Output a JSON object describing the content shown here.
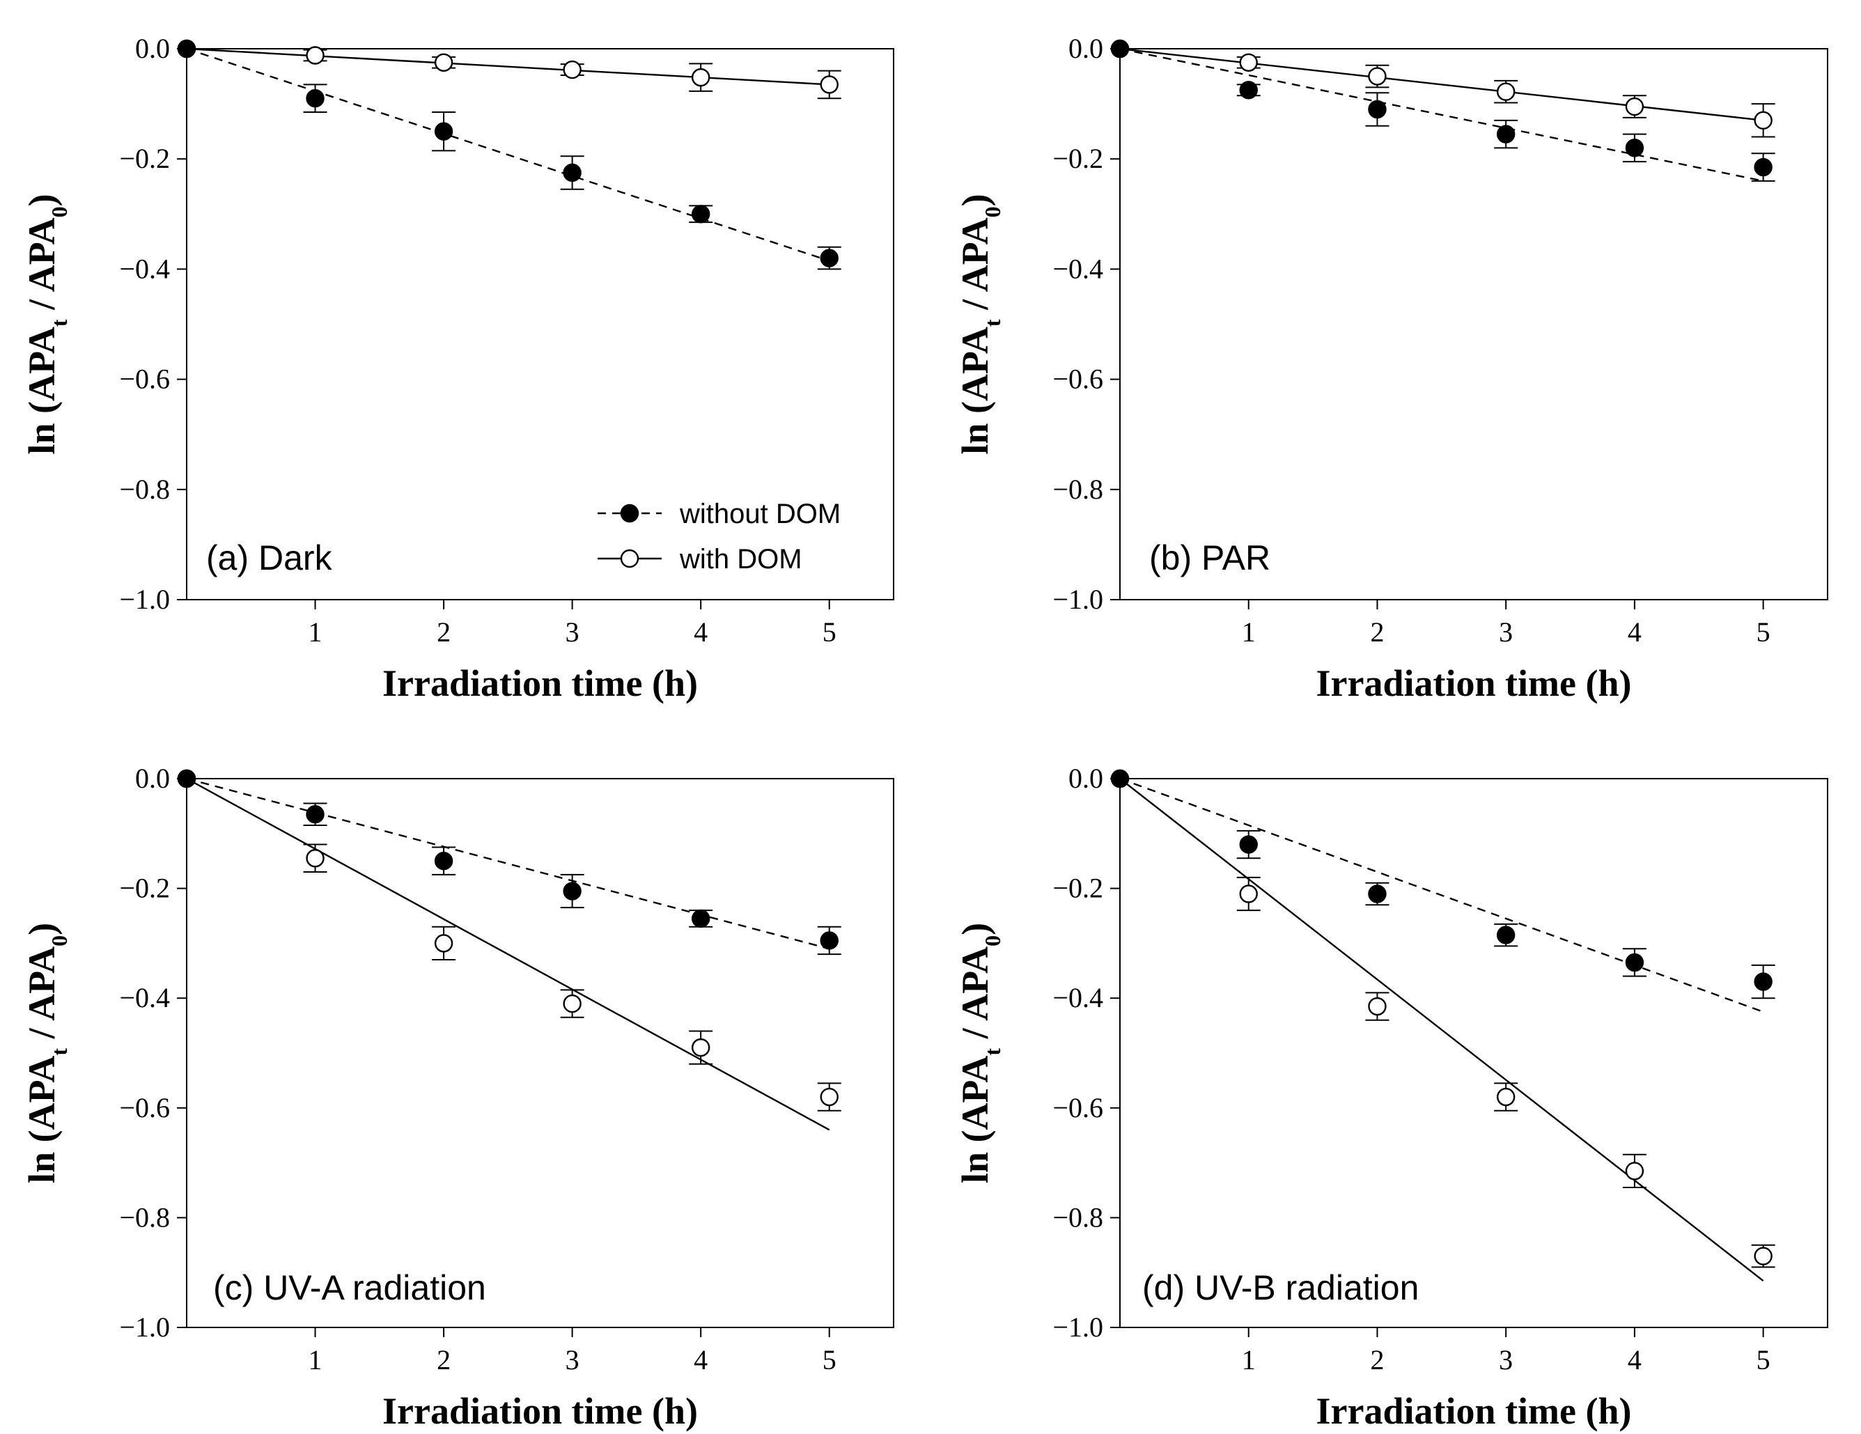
{
  "chart_data": [
    {
      "type": "scatter",
      "panel_label": "(a) Dark",
      "xlabel": "Irradiation time (h)",
      "ylabel": "ln (APA_t / APA_0)",
      "xlim": [
        0,
        5.5
      ],
      "ylim": [
        -1.0,
        0.0
      ],
      "xticks": [
        "1",
        "2",
        "3",
        "4",
        "5"
      ],
      "yticks": [
        "0.0",
        "−0.2",
        "−0.4",
        "−0.6",
        "−0.8",
        "−1.0"
      ],
      "series": [
        {
          "name": "without DOM",
          "marker": "filled",
          "line": "dashed",
          "x": [
            0,
            1,
            2,
            3,
            4,
            5
          ],
          "y": [
            0,
            -0.09,
            -0.15,
            -0.225,
            -0.3,
            -0.38
          ],
          "err": [
            0,
            0.025,
            0.035,
            0.03,
            0.015,
            0.02
          ],
          "fit": [
            0,
            -0.077
          ]
        },
        {
          "name": "with DOM",
          "marker": "open",
          "line": "solid",
          "x": [
            0,
            1,
            2,
            3,
            4,
            5
          ],
          "y": [
            0,
            -0.012,
            -0.025,
            -0.038,
            -0.052,
            -0.065
          ],
          "err": [
            0,
            0.01,
            0.01,
            0.01,
            0.025,
            0.025
          ],
          "fit": [
            0,
            -0.013
          ]
        }
      ],
      "legend": {
        "placement": "bottom-right",
        "entries": [
          "without DOM",
          "with DOM"
        ]
      }
    },
    {
      "type": "scatter",
      "panel_label": "(b) PAR",
      "xlabel": "Irradiation time (h)",
      "ylabel": "ln (APA_t / APA_0)",
      "xlim": [
        0,
        5.5
      ],
      "ylim": [
        -1.0,
        0.0
      ],
      "xticks": [
        "1",
        "2",
        "3",
        "4",
        "5"
      ],
      "yticks": [
        "0.0",
        "−0.2",
        "−0.4",
        "−0.6",
        "−0.8",
        "−1.0"
      ],
      "series": [
        {
          "name": "without DOM",
          "marker": "filled",
          "line": "dashed",
          "x": [
            0,
            1,
            2,
            3,
            4,
            5
          ],
          "y": [
            0,
            -0.075,
            -0.11,
            -0.155,
            -0.18,
            -0.215
          ],
          "err": [
            0,
            0.01,
            0.03,
            0.025,
            0.025,
            0.025
          ],
          "fit": [
            0,
            -0.048
          ]
        },
        {
          "name": "with DOM",
          "marker": "open",
          "line": "solid",
          "x": [
            0,
            1,
            2,
            3,
            4,
            5
          ],
          "y": [
            0,
            -0.025,
            -0.05,
            -0.078,
            -0.105,
            -0.13
          ],
          "err": [
            0,
            0.01,
            0.02,
            0.02,
            0.02,
            0.03
          ],
          "fit": [
            0,
            -0.026
          ]
        }
      ]
    },
    {
      "type": "scatter",
      "panel_label": "(c) UV-A radiation",
      "xlabel": "Irradiation time (h)",
      "ylabel": "ln (APA_t / APA_0)",
      "xlim": [
        0,
        5.5
      ],
      "ylim": [
        -1.0,
        0.0
      ],
      "xticks": [
        "1",
        "2",
        "3",
        "4",
        "5"
      ],
      "yticks": [
        "0.0",
        "−0.2",
        "−0.4",
        "−0.6",
        "−0.8",
        "−1.0"
      ],
      "series": [
        {
          "name": "without DOM",
          "marker": "filled",
          "line": "dashed",
          "x": [
            0,
            1,
            2,
            3,
            4,
            5
          ],
          "y": [
            0,
            -0.065,
            -0.15,
            -0.205,
            -0.255,
            -0.295
          ],
          "err": [
            0,
            0.02,
            0.025,
            0.03,
            0.015,
            0.025
          ],
          "fit": [
            0,
            -0.062
          ]
        },
        {
          "name": "with DOM",
          "marker": "open",
          "line": "solid",
          "x": [
            0,
            1,
            2,
            3,
            4,
            5
          ],
          "y": [
            0,
            -0.145,
            -0.3,
            -0.41,
            -0.49,
            -0.58
          ],
          "err": [
            0,
            0.025,
            0.03,
            0.025,
            0.03,
            0.025
          ],
          "fit": [
            0,
            -0.128
          ]
        }
      ]
    },
    {
      "type": "scatter",
      "panel_label": "(d) UV-B radiation",
      "xlabel": "Irradiation time (h)",
      "ylabel": "ln (APA_t / APA_0)",
      "xlim": [
        0,
        5.5
      ],
      "ylim": [
        -1.0,
        0.0
      ],
      "xticks": [
        "1",
        "2",
        "3",
        "4",
        "5"
      ],
      "yticks": [
        "0.0",
        "−0.2",
        "−0.4",
        "−0.6",
        "−0.8",
        "−1.0"
      ],
      "series": [
        {
          "name": "without DOM",
          "marker": "filled",
          "line": "dashed",
          "x": [
            0,
            1,
            2,
            3,
            4,
            5
          ],
          "y": [
            0,
            -0.12,
            -0.21,
            -0.285,
            -0.335,
            -0.37
          ],
          "err": [
            0,
            0.025,
            0.02,
            0.02,
            0.025,
            0.03
          ],
          "fit": [
            0,
            -0.085
          ]
        },
        {
          "name": "with DOM",
          "marker": "open",
          "line": "solid",
          "x": [
            0,
            1,
            2,
            3,
            4,
            5
          ],
          "y": [
            0,
            -0.21,
            -0.415,
            -0.58,
            -0.715,
            -0.87
          ],
          "err": [
            0,
            0.03,
            0.025,
            0.025,
            0.03,
            0.02
          ],
          "fit": [
            0,
            -0.183
          ]
        }
      ]
    }
  ]
}
